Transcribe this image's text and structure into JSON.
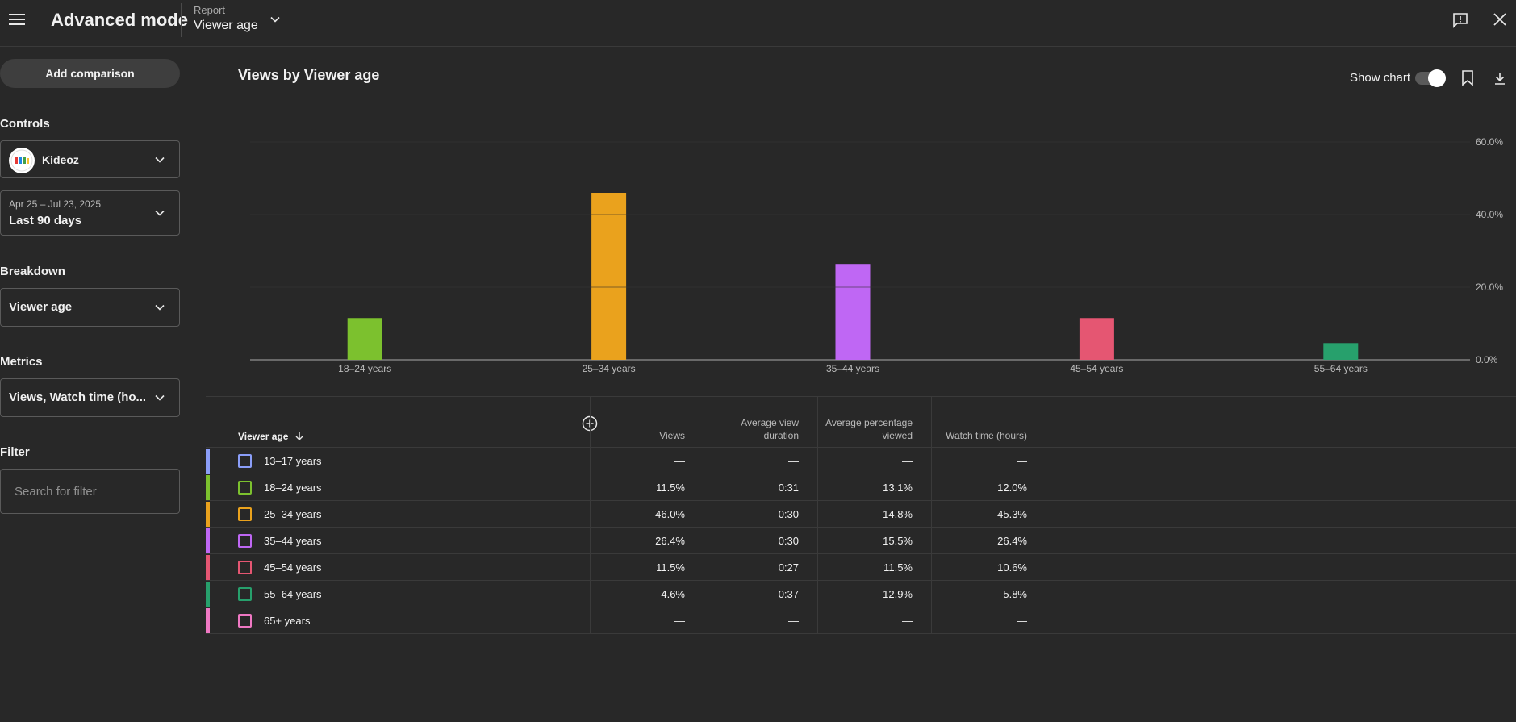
{
  "header": {
    "title": "Advanced mode",
    "report_label": "Report",
    "report_value": "Viewer age"
  },
  "sidebar": {
    "add_comparison": "Add comparison",
    "controls_label": "Controls",
    "channel_name": "Kideoz",
    "date_range": "Apr 25 – Jul 23, 2025",
    "date_preset": "Last 90 days",
    "breakdown_label": "Breakdown",
    "breakdown_value": "Viewer age",
    "metrics_label": "Metrics",
    "metrics_value": "Views, Watch time (ho...",
    "filter_label": "Filter",
    "filter_placeholder": "Search for filter"
  },
  "chart": {
    "title": "Views by Viewer age",
    "show_chart_label": "Show chart",
    "show_chart_on": true
  },
  "chart_data": {
    "type": "bar",
    "categories": [
      "18–24 years",
      "25–34 years",
      "35–44 years",
      "45–54 years",
      "55–64 years"
    ],
    "values": [
      11.5,
      46.0,
      26.4,
      11.5,
      4.6
    ],
    "colors": [
      "#7cc12e",
      "#eaa21d",
      "#bf67f4",
      "#e55672",
      "#27a06c"
    ],
    "yticks": [
      "0.0%",
      "20.0%",
      "40.0%",
      "60.0%"
    ],
    "ylim": [
      0,
      60
    ],
    "grid": true
  },
  "table": {
    "dimension_header": "Viewer age",
    "columns": [
      "Views",
      "Average view duration",
      "Average percentage viewed",
      "Watch time (hours)"
    ],
    "rows": [
      {
        "label": "13–17 years",
        "color": "#8b9ef8",
        "values": [
          "—",
          "—",
          "—",
          "—"
        ]
      },
      {
        "label": "18–24 years",
        "color": "#7cc12e",
        "values": [
          "11.5%",
          "0:31",
          "13.1%",
          "12.0%"
        ]
      },
      {
        "label": "25–34 years",
        "color": "#eaa21d",
        "values": [
          "46.0%",
          "0:30",
          "14.8%",
          "45.3%"
        ]
      },
      {
        "label": "35–44 years",
        "color": "#bf67f4",
        "values": [
          "26.4%",
          "0:30",
          "15.5%",
          "26.4%"
        ]
      },
      {
        "label": "45–54 years",
        "color": "#e55672",
        "values": [
          "11.5%",
          "0:27",
          "11.5%",
          "10.6%"
        ]
      },
      {
        "label": "55–64 years",
        "color": "#27a06c",
        "values": [
          "4.6%",
          "0:37",
          "12.9%",
          "5.8%"
        ]
      },
      {
        "label": "65+ years",
        "color": "#ef78c3",
        "values": [
          "—",
          "—",
          "—",
          "—"
        ]
      }
    ]
  },
  "icons": {
    "menu": "hamburger-menu-icon",
    "report_dropdown": "chevron-down-icon",
    "feedback": "feedback-icon",
    "close": "close-icon",
    "bookmark": "bookmark-icon",
    "download": "download-icon",
    "sort": "arrow-down-icon",
    "add_metric": "plus-circle-icon"
  }
}
